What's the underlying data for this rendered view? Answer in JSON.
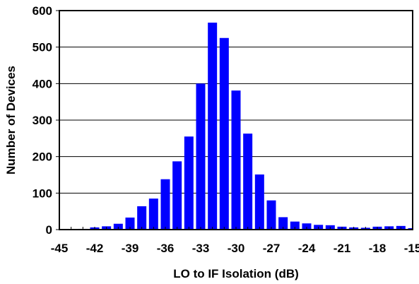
{
  "chart_data": {
    "type": "bar",
    "title": "",
    "xlabel": "LO to IF Isolation (dB)",
    "ylabel": "Number of Devices",
    "xlim": [
      -45,
      -15
    ],
    "ylim": [
      0,
      600
    ],
    "grid": "horizontal",
    "bar_color": "#0000FF",
    "x_ticks": [
      "-45",
      "-42",
      "-39",
      "-36",
      "-33",
      "-30",
      "-27",
      "-24",
      "-21",
      "-18",
      "-15"
    ],
    "y_ticks": [
      "0",
      "100",
      "200",
      "300",
      "400",
      "500",
      "600"
    ],
    "categories": [
      -45,
      -44,
      -43,
      -42,
      -41,
      -40,
      -39,
      -38,
      -37,
      -36,
      -35,
      -34,
      -33,
      -32,
      -31,
      -30,
      -29,
      -28,
      -27,
      -26,
      -25,
      -24,
      -23,
      -22,
      -21,
      -20,
      -19,
      -18,
      -17,
      -16,
      -15
    ],
    "values": [
      0,
      1,
      2,
      6,
      9,
      16,
      33,
      64,
      85,
      138,
      187,
      255,
      400,
      567,
      525,
      381,
      263,
      151,
      80,
      34,
      22,
      17,
      13,
      12,
      8,
      6,
      5,
      8,
      9,
      10,
      4
    ]
  }
}
